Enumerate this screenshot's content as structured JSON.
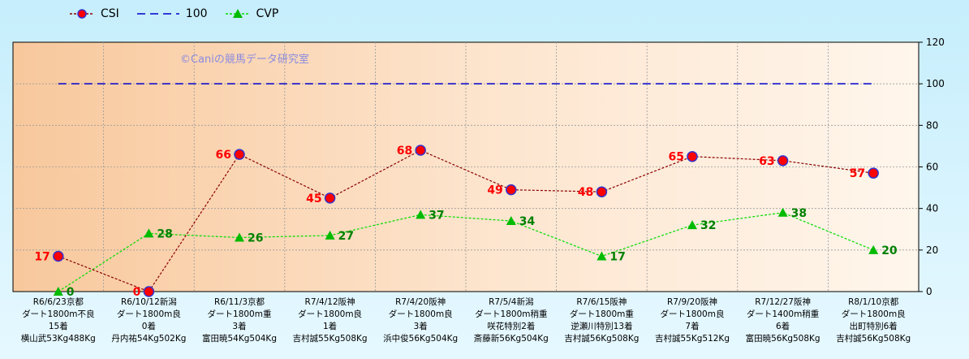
{
  "chart_data": {
    "type": "line",
    "categories": [
      [
        "R6/6/23京都",
        "ダート1800m不良",
        "15着",
        "横山武53Kg488Kg"
      ],
      [
        "R6/10/12新潟",
        "ダート1800m良",
        "0着",
        "丹内祐54Kg502Kg"
      ],
      [
        "R6/11/3京都",
        "ダート1800m重",
        "3着",
        "富田暁54Kg504Kg"
      ],
      [
        "R7/4/12阪神",
        "ダート1800m良",
        "1着",
        "吉村誠55Kg508Kg"
      ],
      [
        "R7/4/20阪神",
        "ダート1800m良",
        "3着",
        "浜中俊56Kg504Kg"
      ],
      [
        "R7/5/4新潟",
        "ダート1800m稍重",
        "咲花特別2着",
        "斎藤新56Kg504Kg"
      ],
      [
        "R7/6/15阪神",
        "ダート1800m重",
        "逆瀬川特別13着",
        "吉村誠56Kg508Kg"
      ],
      [
        "R7/9/20阪神",
        "ダート1800m良",
        "7着",
        "吉村誠55Kg512Kg"
      ],
      [
        "R7/12/27阪神",
        "ダート1400m稍重",
        "6着",
        "富田暁56Kg508Kg"
      ],
      [
        "R8/1/10京都",
        "ダート1800m良",
        "出町特別6着",
        "吉村誠56Kg508Kg"
      ]
    ],
    "series": [
      {
        "name": "CSI",
        "values": [
          17,
          0,
          66,
          45,
          68,
          49,
          48,
          65,
          63,
          57
        ],
        "color": "#8b0000",
        "marker_color": "#ff0000",
        "marker_edge": "#3333cc",
        "label_color": "#ff0000"
      },
      {
        "name": "100",
        "values": [
          100,
          100,
          100,
          100,
          100,
          100,
          100,
          100,
          100,
          100
        ],
        "color": "#0000cc"
      },
      {
        "name": "CVP",
        "values": [
          0,
          28,
          26,
          27,
          37,
          34,
          17,
          32,
          38,
          20
        ],
        "color": "#00dd00",
        "marker_color": "#00bb00",
        "label_color": "#008000"
      }
    ],
    "y_ticks": [
      0,
      20,
      40,
      60,
      80,
      100,
      120
    ],
    "ylim": [
      0,
      120
    ],
    "y_axis_position": "right",
    "grid": true,
    "legend_position": "top-left",
    "watermark": "©Caniの競馬データ研究室"
  }
}
